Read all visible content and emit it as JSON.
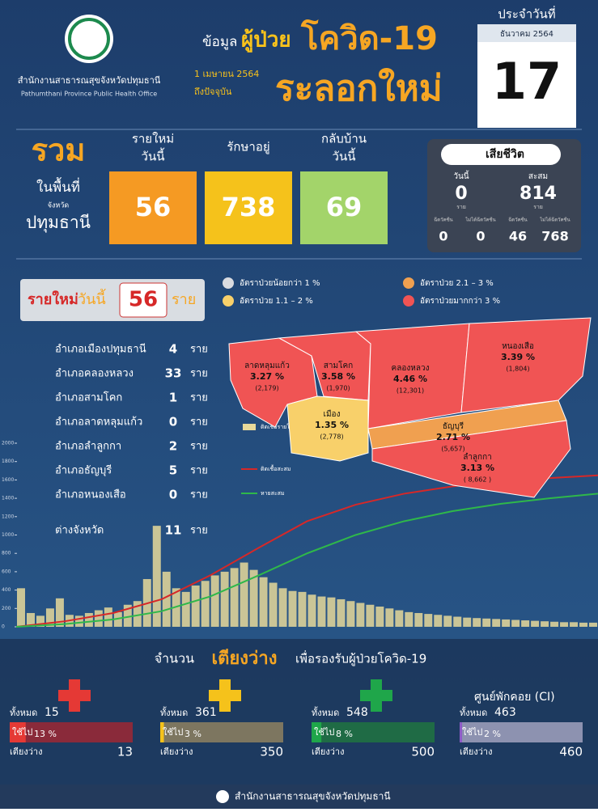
{
  "header": {
    "org": "สำนักงานสาธารณสุขจังหวัดปทุมธานี",
    "org_en": "Pathumthani Province Public Health Office",
    "title_prefix": "ข้อมูล",
    "title_main": "ผู้ป่วย",
    "title_covid": "โควิด-19",
    "title_wave": "ระลอกใหม่",
    "period_start": "1 เมษายน 2564",
    "period_end": "ถึงปัจจุบัน",
    "date_label": "ประจำวันที่",
    "month": "ธันวาคม 2564",
    "day": "17"
  },
  "summary": {
    "label": "รวม",
    "area_label": "ในพื้นที่",
    "province_prefix": "จังหวัด",
    "province": "ปทุมธานี",
    "boxes": [
      {
        "label": [
          "รายใหม่",
          "วันนี้"
        ],
        "value": 56,
        "color": "#f59a23"
      },
      {
        "label": [
          "รักษาอยู่"
        ],
        "value": 738,
        "color": "#f5c21b"
      },
      {
        "label": [
          "กลับบ้าน",
          "วันนี้"
        ],
        "value": 69,
        "color": "#a3d46a"
      }
    ]
  },
  "deaths": {
    "title": "เสียชีวิต",
    "today_label": "วันนี้",
    "today": 0,
    "total_label": "สะสม",
    "total": 814,
    "unit": "ราย",
    "sub": [
      {
        "label": "ฉีดวัคซีน",
        "value": 0
      },
      {
        "label": "ไม่ได้ฉีดวัคซีน",
        "value": 0
      },
      {
        "label": "ฉีดวัคซีน",
        "value": 46
      },
      {
        "label": "ไม่ได้ฉีดวัคซีน",
        "value": 768
      }
    ]
  },
  "new_cases": {
    "label": "รายใหม่",
    "label2": "วันนี้",
    "value": 56,
    "unit": "ราย"
  },
  "legend": [
    {
      "text": "อัตราป่วยน้อยกว่า 1 %",
      "color": "#d9dbe0"
    },
    {
      "text": "อัตราป่วย 1.1 – 2 %",
      "color": "#f8d06a"
    },
    {
      "text": "อัตราป่วย 2.1 – 3 %",
      "color": "#f0a050"
    },
    {
      "text": "อัตราป่วยมากกว่า 3 %",
      "color": "#f05454"
    }
  ],
  "districts": [
    {
      "name": "อำเภอเมืองปทุมธานี",
      "value": 4
    },
    {
      "name": "อำเภอคลองหลวง",
      "value": 33
    },
    {
      "name": "อำเภอสามโคก",
      "value": 1
    },
    {
      "name": "อำเภอลาดหลุมแก้ว",
      "value": 0
    },
    {
      "name": "อำเภอลำลูกกา",
      "value": 2
    },
    {
      "name": "อำเภอธัญบุรี",
      "value": 5
    },
    {
      "name": "อำเภอหนองเสือ",
      "value": 0
    },
    {
      "name": "ต่างจังหวัด",
      "value": 11
    }
  ],
  "district_unit": "ราย",
  "map": [
    {
      "name": "ลาดหลุมแก้ว",
      "rate": "3.27 %",
      "count": "(2,179)"
    },
    {
      "name": "สามโคก",
      "rate": "3.58 %",
      "count": "(1,970)"
    },
    {
      "name": "คลองหลวง",
      "rate": "4.46 %",
      "count": "(12,301)"
    },
    {
      "name": "หนองเสือ",
      "rate": "3.39 %",
      "count": "(1,804)"
    },
    {
      "name": "เมือง",
      "rate": "1.35 %",
      "count": "(2,778)"
    },
    {
      "name": "ธัญบุรี",
      "rate": "2.71 %",
      "count": "(5,657)"
    },
    {
      "name": "ลำลูกกา",
      "rate": "3.13 %",
      "count": "( 8,662 )"
    }
  ],
  "trend": {
    "type": "bar",
    "ylim": [
      0,
      2000
    ],
    "yticks": [
      0,
      200,
      400,
      600,
      800,
      1000,
      1200,
      1400,
      1600,
      1800,
      2000
    ],
    "series": [
      {
        "name": "ติดเชื้อรายใหม่",
        "color": "#e8d99a",
        "values": [
          420,
          150,
          120,
          200,
          310,
          130,
          120,
          150,
          180,
          210,
          160,
          240,
          280,
          520,
          1100,
          600,
          420,
          380,
          450,
          500,
          560,
          600,
          640,
          700,
          620,
          540,
          480,
          420,
          390,
          380,
          350,
          330,
          320,
          300,
          280,
          260,
          240,
          220,
          200,
          180,
          160,
          150,
          140,
          130,
          120,
          110,
          100,
          95,
          90,
          85,
          80,
          75,
          70,
          65,
          60,
          55,
          50,
          50,
          45,
          45
        ]
      },
      {
        "name": "ติดเชื้อสะสม",
        "color": "#d62828",
        "values": [
          0,
          60,
          150,
          300,
          560,
          860,
          1150,
          1330,
          1450,
          1530,
          1580,
          1620,
          1650
        ]
      },
      {
        "name": "หายสะสม",
        "color": "#2fb84a",
        "values": [
          0,
          30,
          80,
          170,
          330,
          560,
          800,
          1000,
          1150,
          1260,
          1340,
          1400,
          1450
        ]
      }
    ]
  },
  "beds": {
    "title_prefix": "จำนวน",
    "title_main": "เตียงว่าง",
    "title_suffix": "เพื่อรองรับผู้ป่วยโควิด-19",
    "total_label": "ทั้งหมด",
    "used_label": "ใช้ไป",
    "free_label": "เตียงว่าง",
    "groups": [
      {
        "total": 15,
        "used": {
          "value": 13,
          "label": "13 %"
        },
        "free": 13,
        "color": "#e53935",
        "track": "#8a2a3a"
      },
      {
        "total": 361,
        "used": {
          "value": 3,
          "label": "3 %"
        },
        "free": 350,
        "color": "#f5c21b",
        "track": "#7d7660"
      },
      {
        "total": 548,
        "used": {
          "value": 8,
          "label": "8 %"
        },
        "free": 500,
        "color": "#1fa64a",
        "track": "#1f6b45"
      },
      {
        "name": "ศูนย์พักคอย (CI)",
        "total": 463,
        "used": {
          "value": 2,
          "label": "2 %"
        },
        "free": 460,
        "color": "#8e5cc7",
        "track": "#8d92b0"
      }
    ]
  },
  "footer": "สำนักงานสาธารณสุขจังหวัดปทุมธานี"
}
